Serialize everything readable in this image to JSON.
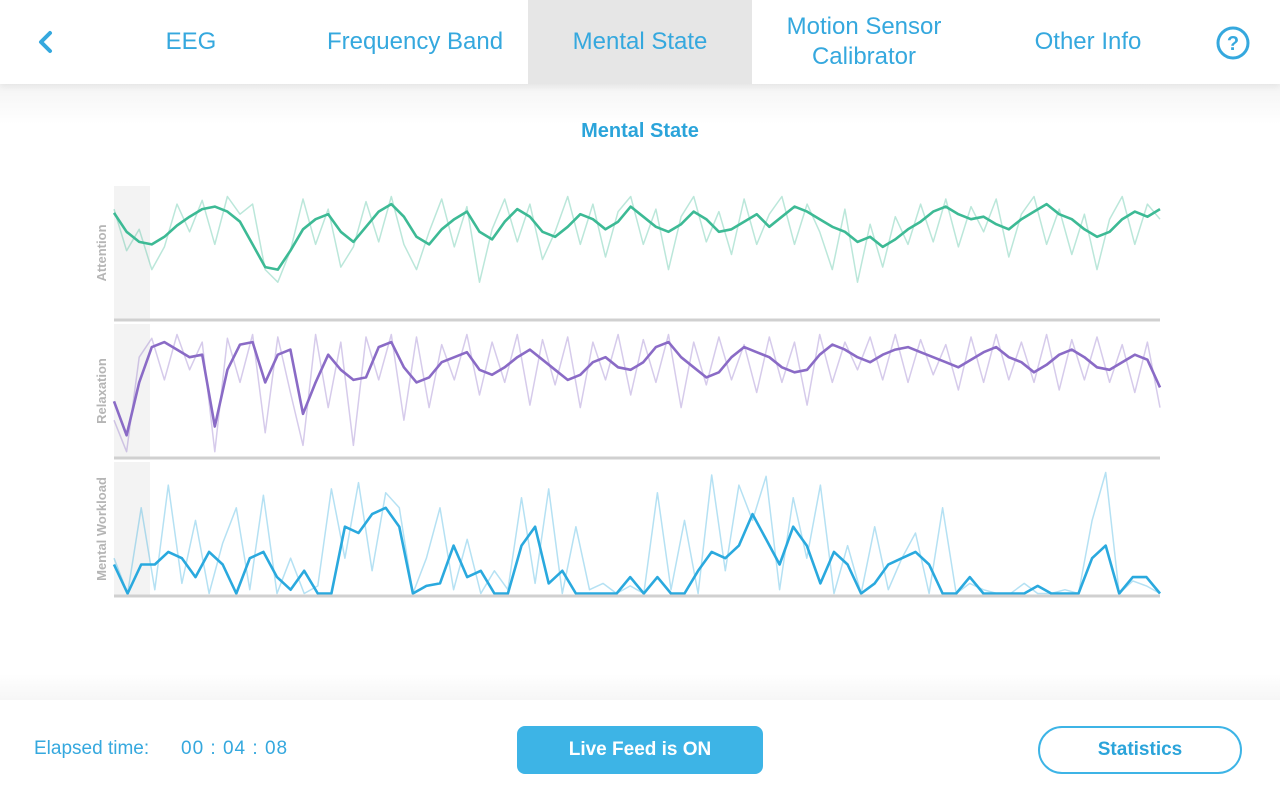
{
  "header": {
    "tabs": [
      {
        "label": "EEG",
        "active": false
      },
      {
        "label": "Frequency Band",
        "active": false
      },
      {
        "label": "Mental State",
        "active": true
      },
      {
        "label": "Motion Sensor Calibrator",
        "active": false
      },
      {
        "label": "Other Info",
        "active": false
      }
    ],
    "help_symbol": "?"
  },
  "icons": {
    "back": "chevron-left-icon",
    "help": "help-circle-icon"
  },
  "colors": {
    "accent": "#35a8de",
    "button_fill": "#3db4e6",
    "active_tab_bg": "#e6e6e6",
    "attention": "#3dba95",
    "relaxation": "#8a6bc6",
    "workload": "#2aa9de"
  },
  "chart_data": {
    "type": "line",
    "title": "Mental State",
    "panels": [
      {
        "ylabel": "Attention",
        "ylim": [
          0,
          100
        ],
        "series": [
          {
            "kind": "smoothed",
            "values": [
              85,
              70,
              62,
              60,
              66,
              75,
              82,
              88,
              90,
              86,
              78,
              60,
              42,
              40,
              55,
              72,
              80,
              84,
              70,
              62,
              74,
              86,
              92,
              82,
              66,
              60,
              72,
              80,
              86,
              70,
              64,
              78,
              88,
              82,
              70,
              66,
              74,
              84,
              80,
              72,
              78,
              90,
              82,
              74,
              70,
              76,
              86,
              80,
              70,
              72,
              78,
              84,
              74,
              82,
              90,
              86,
              80,
              74,
              70,
              62,
              66,
              58,
              64,
              72,
              78,
              86,
              90,
              84,
              80,
              82,
              76,
              72,
              80,
              86,
              92,
              84,
              80,
              72,
              66,
              70,
              80,
              86,
              82,
              88
            ]
          },
          {
            "kind": "raw",
            "values": [
              88,
              55,
              72,
              40,
              58,
              92,
              70,
              95,
              60,
              98,
              84,
              92,
              40,
              30,
              55,
              96,
              60,
              88,
              42,
              58,
              94,
              62,
              98,
              60,
              40,
              70,
              96,
              58,
              90,
              30,
              72,
              96,
              62,
              92,
              48,
              70,
              98,
              60,
              92,
              50,
              86,
              98,
              60,
              88,
              40,
              82,
              98,
              62,
              86,
              52,
              96,
              60,
              84,
              98,
              60,
              92,
              70,
              40,
              88,
              30,
              76,
              42,
              82,
              60,
              92,
              62,
              96,
              58,
              90,
              70,
              96,
              50,
              84,
              98,
              60,
              88,
              52,
              84,
              40,
              80,
              98,
              60,
              92,
              80
            ]
          }
        ]
      },
      {
        "ylabel": "Relaxation",
        "ylim": [
          0,
          100
        ],
        "series": [
          {
            "kind": "smoothed",
            "values": [
              45,
              18,
              60,
              88,
              92,
              86,
              80,
              82,
              25,
              70,
              90,
              92,
              60,
              82,
              86,
              35,
              60,
              82,
              70,
              62,
              64,
              88,
              92,
              72,
              60,
              64,
              76,
              80,
              84,
              70,
              66,
              72,
              80,
              86,
              78,
              70,
              62,
              66,
              76,
              80,
              72,
              70,
              76,
              88,
              92,
              80,
              72,
              64,
              68,
              80,
              88,
              84,
              80,
              72,
              68,
              70,
              82,
              90,
              86,
              80,
              76,
              82,
              86,
              88,
              84,
              80,
              76,
              72,
              78,
              84,
              88,
              80,
              76,
              68,
              74,
              82,
              86,
              80,
              72,
              70,
              76,
              82,
              78,
              56
            ]
          },
          {
            "kind": "raw",
            "values": [
              30,
              5,
              80,
              95,
              62,
              98,
              70,
              92,
              5,
              95,
              60,
              98,
              20,
              96,
              52,
              10,
              98,
              40,
              92,
              10,
              96,
              62,
              98,
              30,
              96,
              40,
              90,
              62,
              98,
              50,
              92,
              60,
              98,
              42,
              94,
              58,
              96,
              40,
              92,
              62,
              98,
              50,
              94,
              60,
              98,
              40,
              92,
              58,
              96,
              62,
              90,
              52,
              96,
              60,
              92,
              42,
              98,
              60,
              92,
              70,
              96,
              62,
              98,
              60,
              94,
              66,
              90,
              54,
              96,
              60,
              98,
              62,
              92,
              60,
              98,
              54,
              94,
              62,
              96,
              60,
              90,
              52,
              92,
              40
            ]
          }
        ]
      },
      {
        "ylabel": "Mental Workload",
        "ylim": [
          0,
          100
        ],
        "series": [
          {
            "kind": "smoothed",
            "values": [
              25,
              2,
              25,
              25,
              35,
              30,
              15,
              35,
              25,
              2,
              30,
              35,
              15,
              5,
              20,
              2,
              2,
              55,
              50,
              65,
              70,
              55,
              2,
              8,
              10,
              40,
              15,
              20,
              2,
              2,
              40,
              55,
              10,
              20,
              2,
              2,
              2,
              2,
              15,
              2,
              15,
              2,
              2,
              20,
              35,
              30,
              40,
              65,
              45,
              25,
              55,
              40,
              10,
              35,
              25,
              2,
              10,
              25,
              30,
              35,
              25,
              2,
              2,
              15,
              2,
              2,
              2,
              2,
              8,
              2,
              2,
              2,
              30,
              40,
              2,
              15,
              15,
              2
            ]
          },
          {
            "kind": "raw",
            "values": [
              30,
              2,
              70,
              5,
              88,
              10,
              60,
              2,
              42,
              70,
              5,
              80,
              2,
              30,
              2,
              8,
              85,
              30,
              90,
              20,
              82,
              70,
              2,
              30,
              70,
              5,
              45,
              2,
              20,
              5,
              78,
              10,
              85,
              2,
              55,
              5,
              10,
              2,
              8,
              2,
              82,
              5,
              60,
              2,
              96,
              20,
              88,
              60,
              95,
              5,
              78,
              30,
              88,
              2,
              40,
              2,
              55,
              5,
              30,
              50,
              2,
              70,
              2,
              10,
              5,
              2,
              2,
              10,
              2,
              2,
              5,
              2,
              60,
              98,
              2,
              12,
              8,
              2
            ]
          }
        ]
      }
    ]
  },
  "footer": {
    "elapsed_label": "Elapsed time:",
    "elapsed_value": "00 : 04 : 08",
    "live_feed_label": "Live Feed is ON",
    "statistics_label": "Statistics"
  }
}
